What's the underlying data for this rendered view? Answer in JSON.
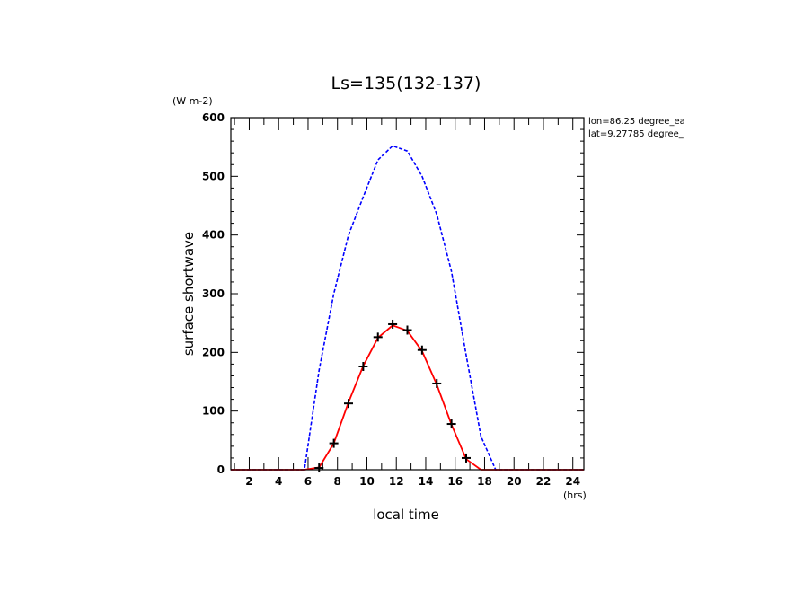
{
  "chart_data": {
    "type": "line",
    "title": "Ls=135(132-137)",
    "xlabel": "local time",
    "ylabel": "surface shortwave",
    "x_unit": "(hrs)",
    "y_unit": "(W m-2)",
    "info_lines": [
      "lon=86.25 degree_ea",
      "lat=9.27785 degree_"
    ],
    "xlim": [
      0.75,
      24.75
    ],
    "ylim": [
      0,
      600
    ],
    "x_major_ticks": [
      2,
      4,
      6,
      8,
      10,
      12,
      14,
      16,
      18,
      20,
      22,
      24
    ],
    "x_minor_ticks": [
      1,
      3,
      5,
      7,
      9,
      11,
      13,
      15,
      17,
      19,
      21,
      23
    ],
    "y_major_ticks": [
      0,
      100,
      200,
      300,
      400,
      500,
      600
    ],
    "y_minor_step": 20,
    "grid": false,
    "legend": "none",
    "series": [
      {
        "style": "dashed",
        "color": "#0000ff",
        "points": [
          [
            0.75,
            0
          ],
          [
            1.75,
            0
          ],
          [
            2.75,
            0
          ],
          [
            3.75,
            0
          ],
          [
            4.75,
            0
          ],
          [
            5.75,
            0
          ],
          [
            6.75,
            170
          ],
          [
            7.75,
            300
          ],
          [
            8.75,
            400
          ],
          [
            9.75,
            465
          ],
          [
            10.75,
            528
          ],
          [
            11.75,
            552
          ],
          [
            12.75,
            543
          ],
          [
            13.75,
            500
          ],
          [
            14.75,
            435
          ],
          [
            15.75,
            338
          ],
          [
            16.75,
            195
          ],
          [
            17.75,
            57
          ],
          [
            18.75,
            0
          ],
          [
            19.75,
            0
          ],
          [
            20.75,
            0
          ],
          [
            21.75,
            0
          ],
          [
            22.75,
            0
          ],
          [
            23.75,
            0
          ],
          [
            24.75,
            0
          ]
        ]
      },
      {
        "style": "solid",
        "color": "#ff0000",
        "points": [
          [
            0.75,
            0
          ],
          [
            1.75,
            0
          ],
          [
            2.75,
            0
          ],
          [
            3.75,
            0
          ],
          [
            4.75,
            0
          ],
          [
            5.75,
            0
          ],
          [
            6.75,
            4
          ],
          [
            7.75,
            45
          ],
          [
            8.75,
            115
          ],
          [
            9.75,
            177
          ],
          [
            10.75,
            225
          ],
          [
            11.75,
            246
          ],
          [
            12.75,
            237
          ],
          [
            13.75,
            202
          ],
          [
            14.75,
            145
          ],
          [
            15.75,
            77
          ],
          [
            16.75,
            18
          ],
          [
            17.75,
            0
          ],
          [
            18.75,
            0
          ],
          [
            19.75,
            0
          ],
          [
            20.75,
            0
          ],
          [
            21.75,
            0
          ],
          [
            22.75,
            0
          ],
          [
            23.75,
            0
          ],
          [
            24.75,
            0
          ]
        ]
      },
      {
        "style": "markers",
        "color": "#000000",
        "marker": "plus",
        "points": [
          [
            6.75,
            3
          ],
          [
            7.75,
            45
          ],
          [
            8.75,
            113
          ],
          [
            9.75,
            176
          ],
          [
            10.75,
            226
          ],
          [
            11.75,
            248
          ],
          [
            12.75,
            238
          ],
          [
            13.75,
            204
          ],
          [
            14.75,
            147
          ],
          [
            15.75,
            78
          ],
          [
            16.75,
            20
          ]
        ]
      }
    ]
  }
}
